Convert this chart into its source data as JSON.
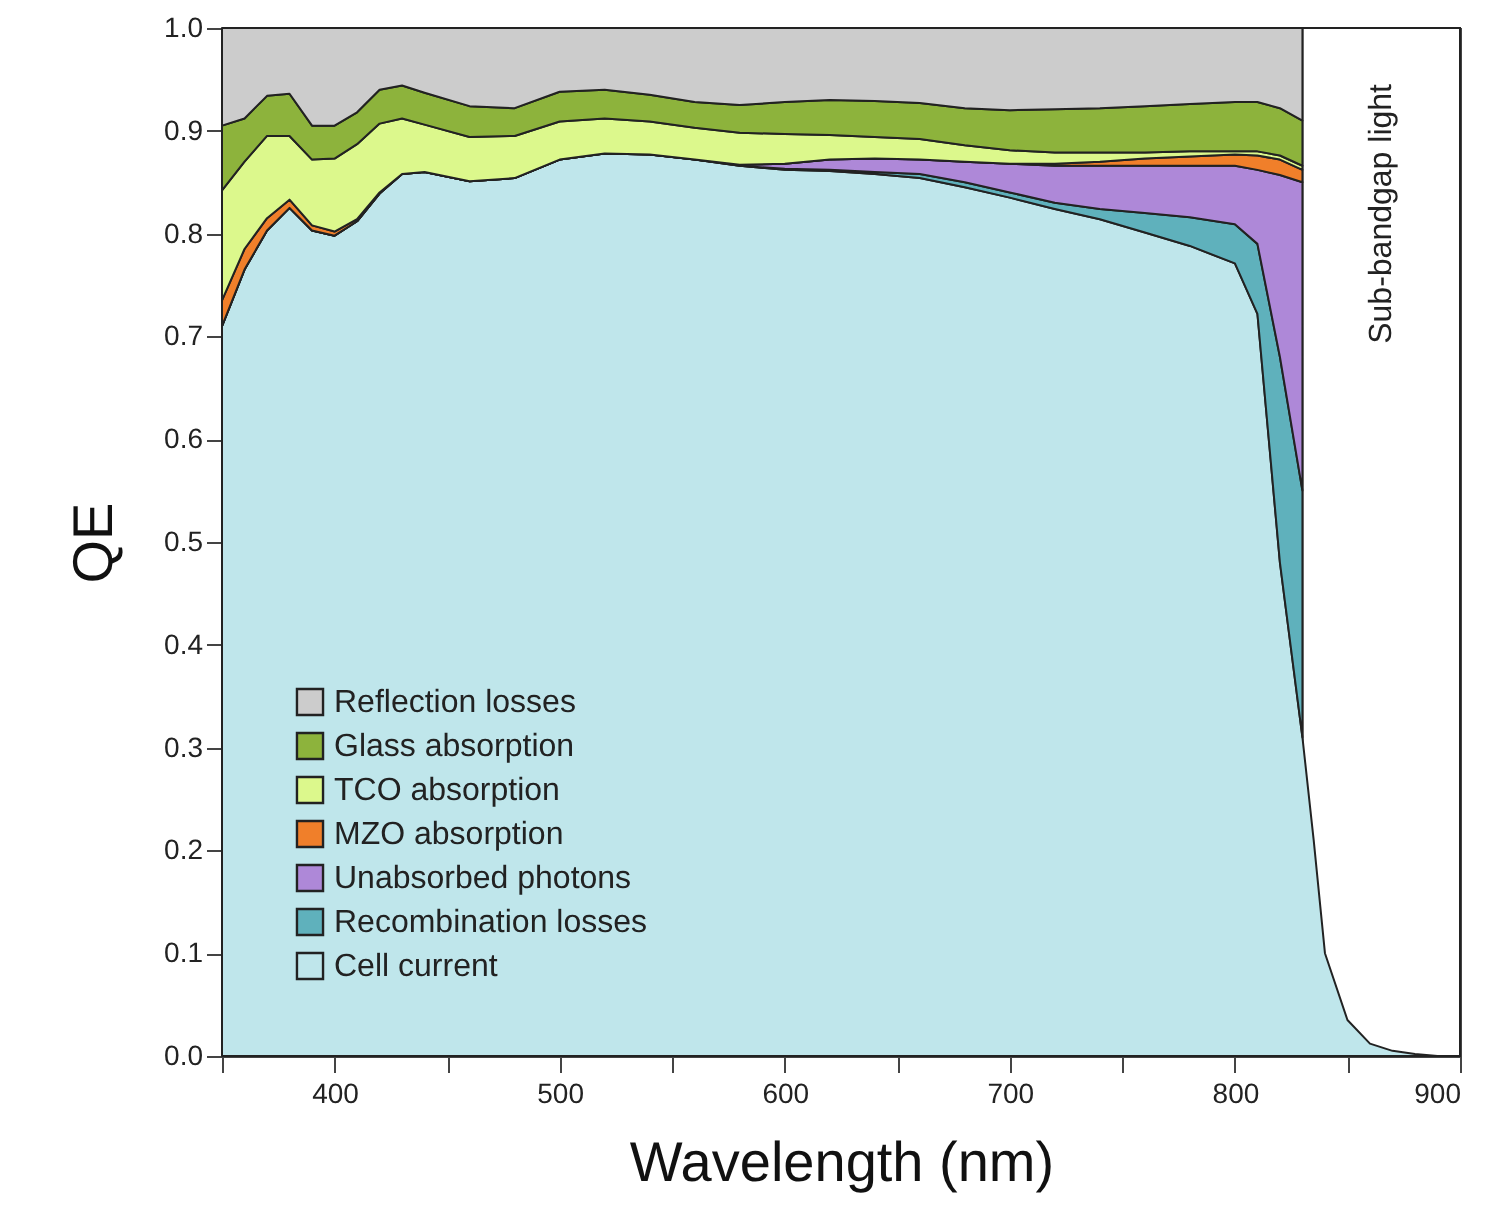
{
  "chart_data": {
    "type": "area",
    "stacked": true,
    "xlabel": "Wavelength (nm)",
    "ylabel": "QE",
    "x": [
      350,
      360,
      370,
      380,
      390,
      400,
      410,
      420,
      430,
      440,
      460,
      480,
      500,
      520,
      540,
      560,
      580,
      600,
      620,
      640,
      660,
      680,
      700,
      720,
      740,
      760,
      780,
      800,
      810,
      820,
      830,
      835,
      840,
      850,
      860,
      870,
      880,
      890,
      900
    ],
    "series": [
      {
        "name": "Cell current",
        "color": "#bfe6eb",
        "values": [
          0.71,
          0.765,
          0.803,
          0.825,
          0.803,
          0.798,
          0.812,
          0.839,
          0.858,
          0.86,
          0.851,
          0.854,
          0.872,
          0.878,
          0.877,
          0.872,
          0.866,
          0.862,
          0.861,
          0.858,
          0.854,
          0.845,
          0.835,
          0.824,
          0.814,
          0.801,
          0.788,
          0.771,
          0.722,
          0.48,
          0.31,
          0.21,
          0.1,
          0.035,
          0.012,
          0.005,
          0.002,
          0,
          0
        ]
      },
      {
        "name": "Recombination losses",
        "color": "#5fb1bc",
        "values": [
          0,
          0,
          0,
          0,
          0,
          0,
          0,
          0,
          0,
          0,
          0,
          0,
          0,
          0,
          0,
          0,
          0,
          0.001,
          0.001,
          0.002,
          0.004,
          0.005,
          0.005,
          0.006,
          0.01,
          0.019,
          0.028,
          0.038,
          0.068,
          0.2,
          0.24,
          null,
          null,
          null,
          null,
          null,
          null,
          null,
          null
        ]
      },
      {
        "name": "Unabsorbed photons",
        "color": "#ae88d8",
        "values": [
          0,
          0,
          0,
          0,
          0,
          0,
          0,
          0,
          0,
          0,
          0,
          0,
          0,
          0,
          0,
          0,
          0.001,
          0.005,
          0.01,
          0.013,
          0.014,
          0.02,
          0.028,
          0.036,
          0.042,
          0.046,
          0.05,
          0.057,
          0.072,
          0.177,
          0.3,
          null,
          null,
          null,
          null,
          null,
          null,
          null,
          null
        ]
      },
      {
        "name": "MZO absorption",
        "color": "#f07f2a",
        "values": [
          0.025,
          0.02,
          0.012,
          0.008,
          0.005,
          0.004,
          0.002,
          0.001,
          0,
          0,
          0,
          0,
          0,
          0,
          0,
          0,
          0,
          0,
          0,
          0,
          0,
          0,
          0,
          0.002,
          0.004,
          0.007,
          0.009,
          0.011,
          0.014,
          0.015,
          0.012,
          null,
          null,
          null,
          null,
          null,
          null,
          null,
          null
        ]
      },
      {
        "name": "TCO absorption",
        "color": "#dcf88c",
        "values": [
          0.107,
          0.085,
          0.08,
          0.062,
          0.064,
          0.071,
          0.073,
          0.067,
          0.054,
          0.046,
          0.043,
          0.041,
          0.037,
          0.034,
          0.032,
          0.031,
          0.031,
          0.029,
          0.024,
          0.021,
          0.02,
          0.016,
          0.013,
          0.011,
          0.009,
          0.006,
          0.005,
          0.003,
          0.004,
          0.004,
          0.004,
          null,
          null,
          null,
          null,
          null,
          null,
          null,
          null
        ]
      },
      {
        "name": "Glass absorption",
        "color": "#8db33c",
        "values": [
          0.063,
          0.042,
          0.039,
          0.041,
          0.033,
          0.032,
          0.031,
          0.033,
          0.032,
          0.031,
          0.03,
          0.027,
          0.029,
          0.028,
          0.026,
          0.025,
          0.027,
          0.031,
          0.034,
          0.035,
          0.035,
          0.036,
          0.039,
          0.042,
          0.043,
          0.045,
          0.046,
          0.048,
          0.048,
          0.046,
          0.044,
          null,
          null,
          null,
          null,
          null,
          null,
          null,
          null
        ]
      },
      {
        "name": "Reflection losses",
        "color": "#cccccc",
        "values": [
          0.095,
          0.088,
          0.066,
          0.064,
          0.095,
          0.095,
          0.082,
          0.06,
          0.056,
          0.063,
          0.076,
          0.078,
          0.062,
          0.06,
          0.065,
          0.072,
          0.075,
          0.072,
          0.07,
          0.071,
          0.073,
          0.078,
          0.08,
          0.079,
          0.078,
          0.076,
          0.074,
          0.072,
          0.072,
          0.078,
          0.09,
          null,
          null,
          null,
          null,
          null,
          null,
          null,
          null
        ]
      }
    ],
    "bands": [
      {
        "axis": "x",
        "from": 830,
        "to": 900,
        "label": "Sub-bandgap light",
        "color": "#ffffff"
      }
    ],
    "xlim": [
      350,
      900
    ],
    "xticks": [
      {
        "value": 350,
        "label": null
      },
      400,
      {
        "value": 450,
        "label": null
      },
      500,
      {
        "value": 550,
        "label": null
      },
      600,
      {
        "value": 650,
        "label": null
      },
      700,
      {
        "value": 750,
        "label": null
      },
      800,
      {
        "value": 850,
        "label": null
      },
      900
    ],
    "ylim": [
      0,
      1
    ],
    "yticks": [
      {
        "value": 0,
        "label": "0.0"
      },
      0.1,
      0.2,
      0.3,
      0.4,
      0.5,
      0.6,
      0.7,
      0.8,
      0.9,
      {
        "value": 1,
        "label": "1.0"
      }
    ],
    "legend": "bottom left",
    "grid": false
  }
}
